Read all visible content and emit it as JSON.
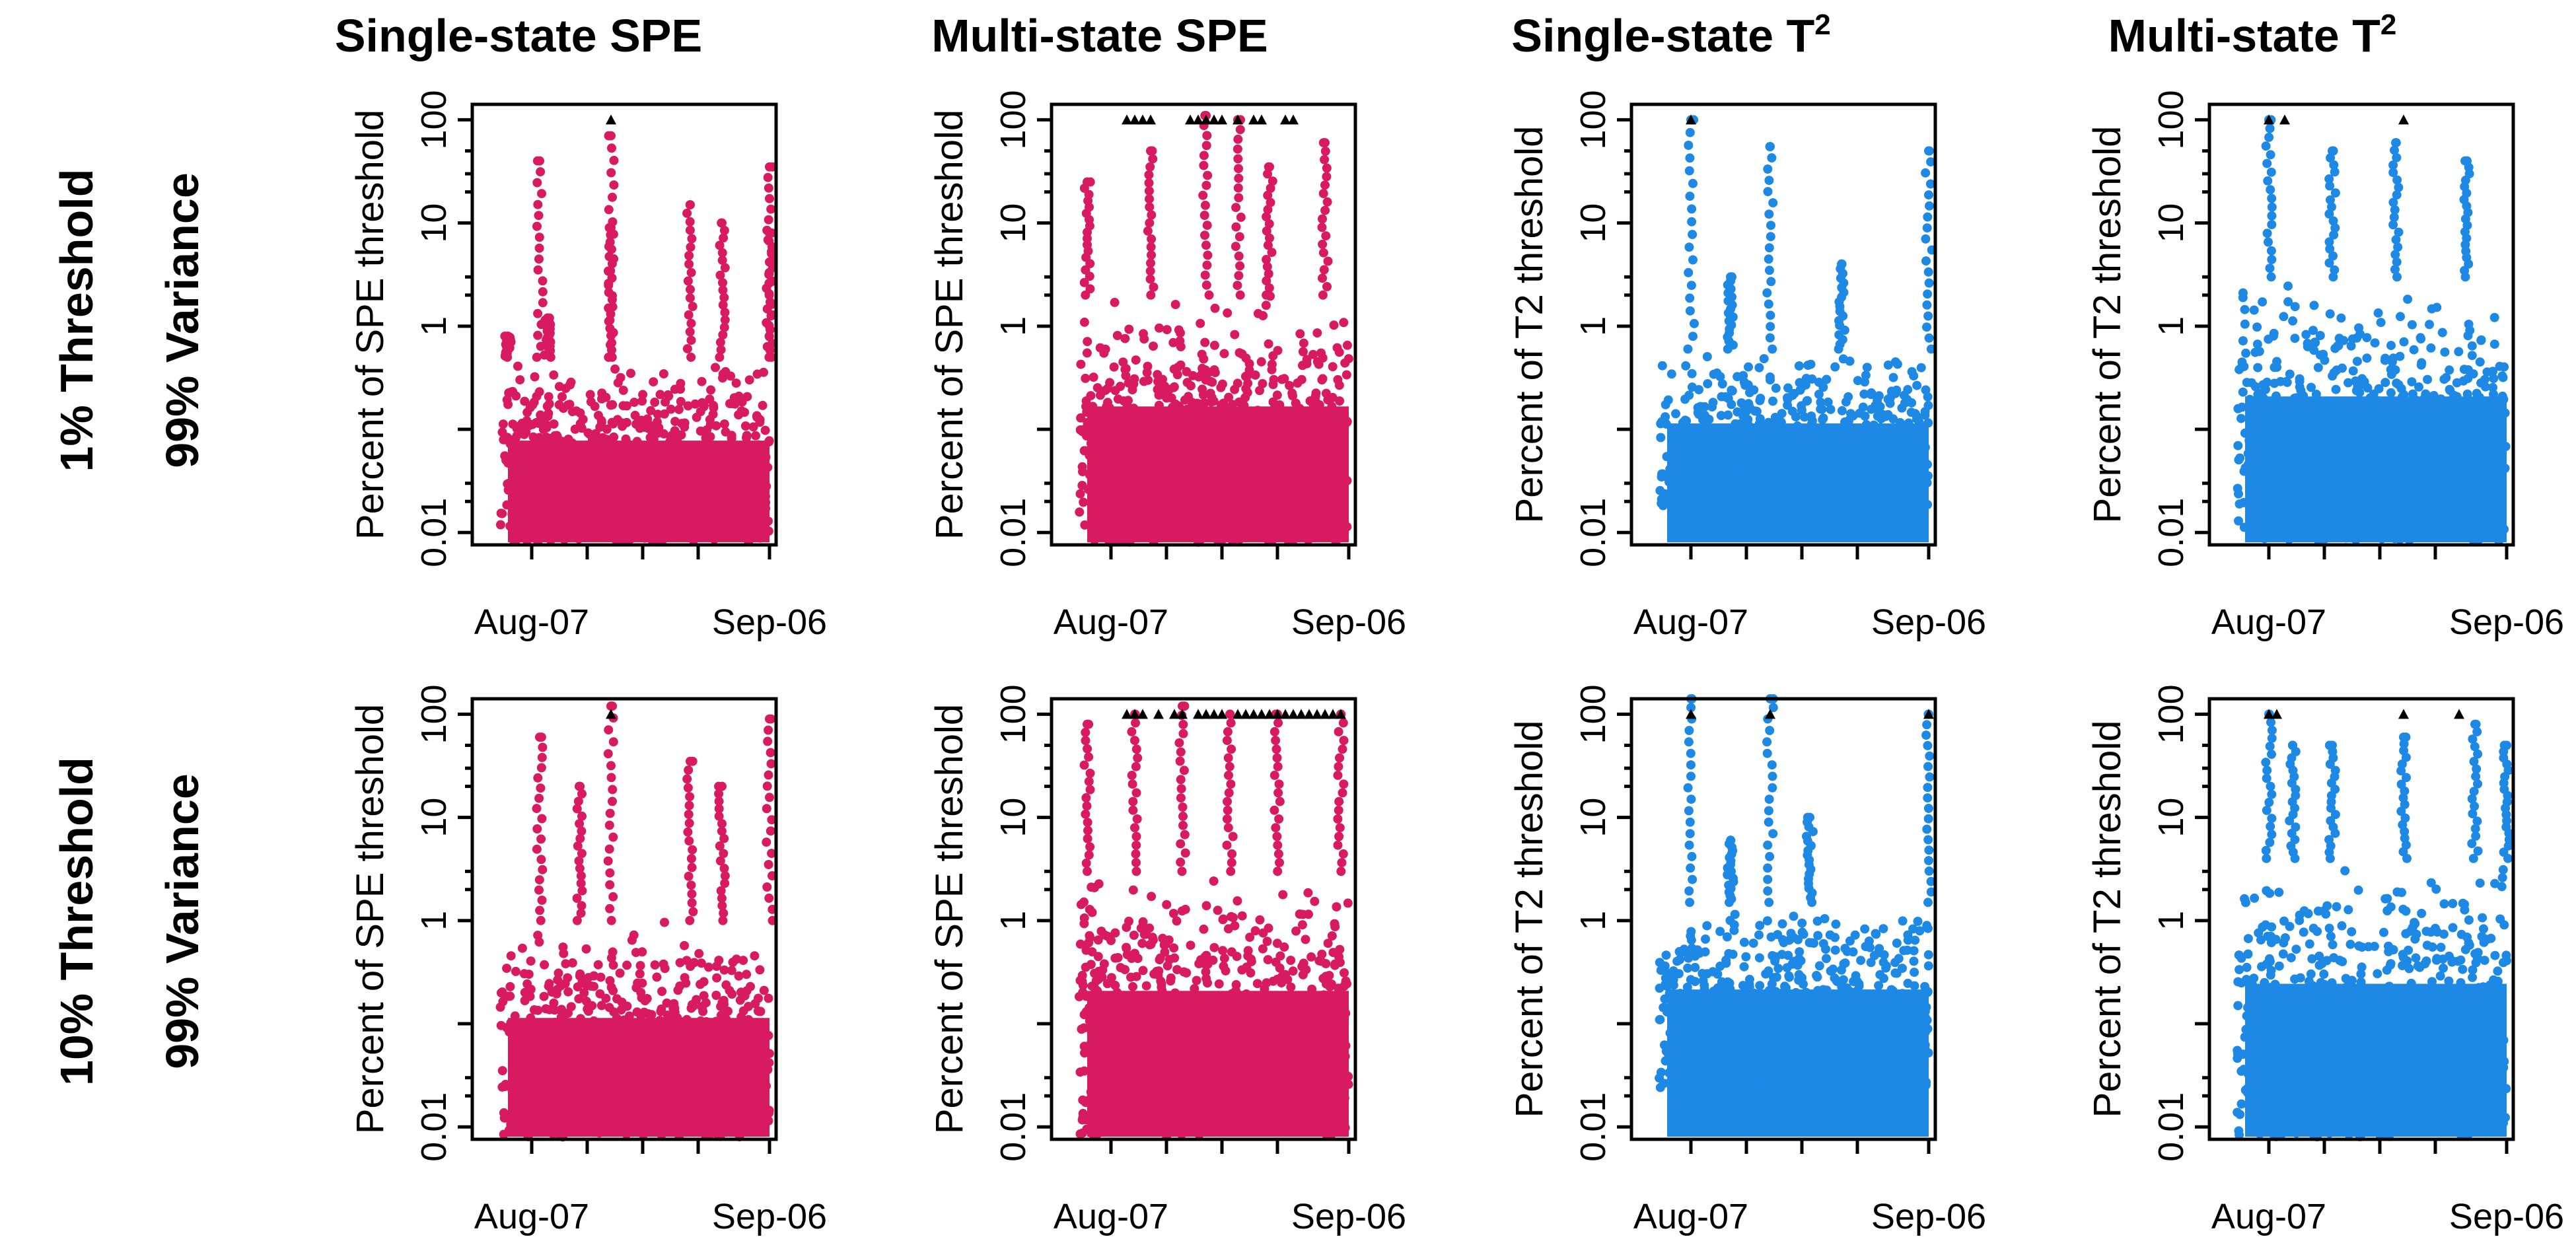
{
  "figure": {
    "column_titles": [
      {
        "text": "Single-state SPE",
        "sup": ""
      },
      {
        "text": "Multi-state SPE",
        "sup": ""
      },
      {
        "text": "Single-state T",
        "sup": "2"
      },
      {
        "text": "Multi-state T",
        "sup": "2"
      }
    ],
    "row_titles": [
      {
        "threshold": "1% Threshold",
        "variance": "99% Variance"
      },
      {
        "threshold": "10% Threshold",
        "variance": "99% Variance"
      }
    ],
    "colors": {
      "spe": "#D81B60",
      "t2": "#1E88E5",
      "marker": "#000000"
    }
  },
  "chart_data": [
    {
      "type": "scatter",
      "row": 1,
      "column": "Single-state SPE",
      "ylabel": "Percent of SPE threshold",
      "yscale": "log",
      "ylim": [
        0.01,
        100
      ],
      "yticks": [
        "0.01",
        "1",
        "10",
        "100"
      ],
      "xticks": [
        "Aug-07",
        "Sep-06"
      ],
      "color": "#D81B60",
      "baseline_range": [
        0.008,
        0.5
      ],
      "spikes": [
        {
          "x": "Aug-04",
          "y": 0.8
        },
        {
          "x": "Aug-09",
          "y": 1.2
        },
        {
          "x": "Aug-08",
          "y": 40
        },
        {
          "x": "Aug-17",
          "y": 9
        },
        {
          "x": "Aug-17",
          "y": 70
        },
        {
          "x": "Aug-27",
          "y": 15
        },
        {
          "x": "Aug-31",
          "y": 10
        },
        {
          "x": "Sep-06",
          "y": 35
        },
        {
          "x": "Sep-06",
          "y": 8
        }
      ],
      "triangle_markers": [
        "Aug-17"
      ]
    },
    {
      "type": "scatter",
      "row": 1,
      "column": "Multi-state SPE",
      "ylabel": "Percent of SPE threshold",
      "yscale": "log",
      "ylim": [
        0.01,
        100
      ],
      "yticks": [
        "0.01",
        "1",
        "10",
        "100"
      ],
      "xticks": [
        "Aug-07",
        "Sep-06"
      ],
      "color": "#D81B60",
      "baseline_range": [
        0.008,
        2
      ],
      "spikes": [
        {
          "x": "Aug-04",
          "y": 25
        },
        {
          "x": "Aug-12",
          "y": 50
        },
        {
          "x": "Aug-19",
          "y": 110
        },
        {
          "x": "Aug-23",
          "y": 100
        },
        {
          "x": "Aug-27",
          "y": 35
        },
        {
          "x": "Sep-03",
          "y": 60
        }
      ],
      "triangle_markers": [
        "Aug-09",
        "Aug-10",
        "Aug-11",
        "Aug-12",
        "Aug-17",
        "Aug-18",
        "Aug-19",
        "Aug-20",
        "Aug-21",
        "Aug-23",
        "Aug-25",
        "Aug-26",
        "Aug-29",
        "Aug-30"
      ]
    },
    {
      "type": "scatter",
      "row": 1,
      "column": "Single-state T2",
      "ylabel": "Percent of T2 threshold",
      "yscale": "log",
      "ylim": [
        0.01,
        100
      ],
      "yticks": [
        "0.01",
        "1",
        "10",
        "100"
      ],
      "xticks": [
        "Aug-07",
        "Sep-06"
      ],
      "color": "#1E88E5",
      "baseline_range": [
        0.015,
        0.6
      ],
      "spikes": [
        {
          "x": "Aug-07",
          "y": 100
        },
        {
          "x": "Aug-12",
          "y": 3
        },
        {
          "x": "Aug-17",
          "y": 55
        },
        {
          "x": "Aug-26",
          "y": 4
        },
        {
          "x": "Sep-06",
          "y": 50
        }
      ],
      "triangle_markers": [
        "Aug-07"
      ]
    },
    {
      "type": "scatter",
      "row": 1,
      "column": "Multi-state T2",
      "ylabel": "Percent of T2 threshold",
      "yscale": "log",
      "ylim": [
        0.01,
        100
      ],
      "yticks": [
        "0.01",
        "1",
        "10",
        "100"
      ],
      "xticks": [
        "Aug-07",
        "Sep-06"
      ],
      "color": "#1E88E5",
      "baseline_range": [
        0.008,
        3
      ],
      "spikes": [
        {
          "x": "Aug-07",
          "y": 100
        },
        {
          "x": "Aug-15",
          "y": 50
        },
        {
          "x": "Aug-23",
          "y": 60
        },
        {
          "x": "Sep-01",
          "y": 40
        }
      ],
      "triangle_markers": [
        "Aug-07",
        "Aug-09",
        "Aug-24"
      ]
    },
    {
      "type": "scatter",
      "row": 2,
      "column": "Single-state SPE",
      "ylabel": "Percent of SPE threshold",
      "yscale": "log",
      "ylim": [
        0.01,
        100
      ],
      "yticks": [
        "0.01",
        "1",
        "10",
        "100"
      ],
      "xticks": [
        "Aug-07",
        "Sep-06"
      ],
      "color": "#D81B60",
      "baseline_range": [
        0.008,
        1
      ],
      "spikes": [
        {
          "x": "Aug-08",
          "y": 60
        },
        {
          "x": "Aug-13",
          "y": 20
        },
        {
          "x": "Aug-17",
          "y": 120
        },
        {
          "x": "Aug-27",
          "y": 35
        },
        {
          "x": "Aug-31",
          "y": 20
        },
        {
          "x": "Sep-06",
          "y": 90
        }
      ],
      "triangle_markers": [
        "Aug-17"
      ]
    },
    {
      "type": "scatter",
      "row": 2,
      "column": "Multi-state SPE",
      "ylabel": "Percent of SPE threshold",
      "yscale": "log",
      "ylim": [
        0.01,
        100
      ],
      "yticks": [
        "0.01",
        "1",
        "10",
        "100"
      ],
      "xticks": [
        "Aug-07",
        "Sep-06"
      ],
      "color": "#D81B60",
      "baseline_range": [
        0.008,
        3
      ],
      "spikes": [
        {
          "x": "Aug-04",
          "y": 80
        },
        {
          "x": "Aug-10",
          "y": 100
        },
        {
          "x": "Aug-16",
          "y": 120
        },
        {
          "x": "Aug-22",
          "y": 100
        },
        {
          "x": "Aug-28",
          "y": 100
        },
        {
          "x": "Sep-05",
          "y": 100
        }
      ],
      "triangle_markers": [
        "Aug-09",
        "Aug-10",
        "Aug-11",
        "Aug-13",
        "Aug-15",
        "Aug-16",
        "Aug-18",
        "Aug-19",
        "Aug-20",
        "Aug-21",
        "Aug-23",
        "Aug-24",
        "Aug-25",
        "Aug-26",
        "Aug-27",
        "Aug-28",
        "Aug-29",
        "Aug-30",
        "Aug-31",
        "Sep-01",
        "Sep-02",
        "Sep-03",
        "Sep-04",
        "Sep-05"
      ]
    },
    {
      "type": "scatter",
      "row": 2,
      "column": "Single-state T2",
      "ylabel": "Percent of T2 threshold",
      "yscale": "log",
      "ylim": [
        0.01,
        100
      ],
      "yticks": [
        "0.01",
        "1",
        "10",
        "100"
      ],
      "xticks": [
        "Aug-07",
        "Sep-06"
      ],
      "color": "#1E88E5",
      "baseline_range": [
        0.02,
        1.5
      ],
      "spikes": [
        {
          "x": "Aug-07",
          "y": 150
        },
        {
          "x": "Aug-12",
          "y": 6
        },
        {
          "x": "Aug-17",
          "y": 150
        },
        {
          "x": "Aug-22",
          "y": 10
        },
        {
          "x": "Sep-06",
          "y": 100
        }
      ],
      "triangle_markers": [
        "Aug-07",
        "Aug-17",
        "Sep-06"
      ]
    },
    {
      "type": "scatter",
      "row": 2,
      "column": "Multi-state T2",
      "ylabel": "Percent of T2 threshold",
      "yscale": "log",
      "ylim": [
        0.01,
        100
      ],
      "yticks": [
        "0.01",
        "1",
        "10",
        "100"
      ],
      "xticks": [
        "Aug-07",
        "Sep-06"
      ],
      "color": "#1E88E5",
      "baseline_range": [
        0.008,
        4
      ],
      "spikes": [
        {
          "x": "Aug-07",
          "y": 100
        },
        {
          "x": "Aug-10",
          "y": 50
        },
        {
          "x": "Aug-15",
          "y": 50
        },
        {
          "x": "Aug-24",
          "y": 60
        },
        {
          "x": "Sep-02",
          "y": 80
        },
        {
          "x": "Sep-06",
          "y": 50
        }
      ],
      "triangle_markers": [
        "Aug-07",
        "Aug-08",
        "Aug-24",
        "Aug-31"
      ]
    }
  ]
}
